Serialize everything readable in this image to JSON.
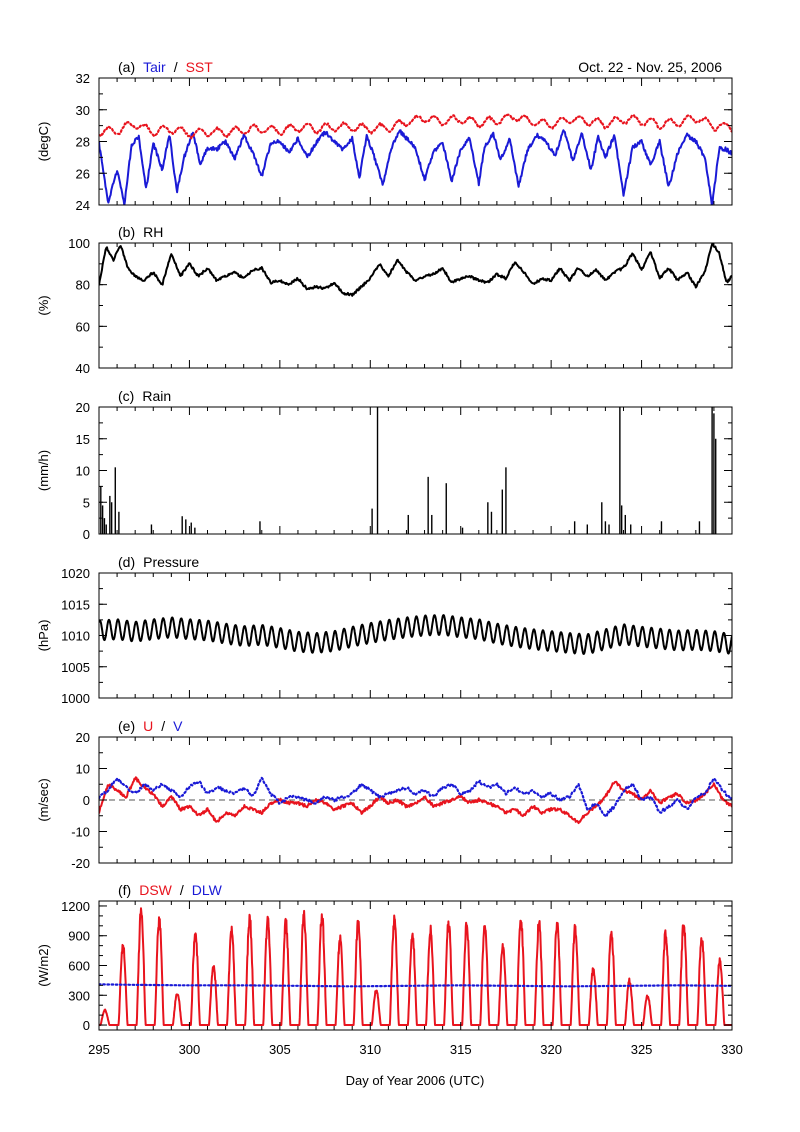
{
  "figure": {
    "date_range": "Oct. 22 - Nov. 25, 2006",
    "xlabel": "Day of Year 2006  (UTC)",
    "xlim": [
      295,
      330
    ],
    "xticks": [
      295,
      300,
      305,
      310,
      315,
      320,
      325,
      330
    ],
    "colors": {
      "red": "#e8141e",
      "blue": "#1a1ad6",
      "black": "#000000"
    }
  },
  "chart_data": [
    {
      "id": "a",
      "type": "line",
      "tag": "(a)",
      "ylabel": "(degC)",
      "ylim": [
        24,
        32
      ],
      "yticks": [
        24,
        26,
        28,
        30,
        32
      ],
      "series": [
        {
          "name": "Tair",
          "color": "#1a1ad6",
          "style": "solid",
          "x": [
            295.0,
            295.5,
            296.0,
            296.4,
            296.8,
            297.2,
            297.6,
            298.0,
            298.5,
            298.9,
            299.3,
            299.7,
            300.2,
            300.6,
            301.0,
            301.5,
            302.0,
            302.5,
            303.0,
            303.5,
            304.0,
            304.5,
            305.0,
            305.5,
            306.0,
            306.5,
            307.0,
            307.5,
            308.0,
            308.5,
            309.0,
            309.4,
            309.8,
            310.2,
            310.7,
            311.2,
            311.6,
            312.0,
            312.5,
            313.0,
            313.5,
            314.0,
            314.5,
            315.0,
            315.5,
            316.0,
            316.3,
            316.8,
            317.2,
            317.7,
            318.2,
            318.7,
            319.2,
            319.7,
            320.2,
            320.7,
            321.2,
            321.7,
            322.2,
            322.6,
            323.0,
            323.5,
            324.0,
            324.5,
            325.0,
            325.5,
            326.0,
            326.5,
            327.0,
            327.5,
            328.0,
            328.5,
            328.9,
            329.3,
            329.7,
            330.0
          ],
          "values": [
            27.9,
            24.1,
            26.2,
            24.0,
            27.8,
            28.3,
            25.0,
            27.9,
            26.2,
            28.5,
            24.8,
            27.0,
            28.6,
            26.5,
            27.6,
            27.5,
            28.0,
            26.9,
            28.4,
            27.3,
            25.8,
            27.9,
            28.0,
            27.3,
            28.2,
            27.0,
            27.9,
            28.6,
            28.0,
            27.5,
            28.2,
            25.7,
            28.4,
            27.1,
            25.3,
            27.7,
            28.7,
            28.2,
            27.6,
            25.6,
            27.4,
            27.9,
            25.5,
            27.5,
            28.2,
            25.3,
            27.6,
            28.5,
            26.8,
            28.2,
            25.2,
            27.5,
            28.4,
            28.0,
            27.1,
            28.7,
            26.8,
            28.5,
            26.2,
            28.3,
            27.0,
            28.4,
            24.6,
            27.6,
            28.0,
            26.5,
            28.0,
            25.1,
            27.3,
            28.4,
            28.0,
            27.0,
            24.0,
            27.6,
            27.5,
            27.2
          ]
        },
        {
          "name": "SST",
          "color": "#e8141e",
          "style": "dotted",
          "x": [
            295.0,
            296.0,
            297.0,
            298.0,
            299.0,
            300.0,
            301.0,
            302.0,
            303.0,
            304.0,
            305.0,
            306.0,
            307.0,
            308.0,
            309.0,
            310.0,
            311.0,
            312.0,
            313.0,
            314.0,
            315.0,
            316.0,
            317.0,
            318.0,
            319.0,
            320.0,
            321.0,
            322.0,
            323.0,
            324.0,
            325.0,
            326.0,
            327.0,
            328.0,
            329.0,
            330.0
          ],
          "values": [
            28.6,
            28.7,
            29.1,
            28.6,
            28.8,
            28.5,
            28.6,
            28.6,
            28.7,
            28.8,
            28.7,
            28.9,
            28.8,
            28.9,
            28.9,
            28.8,
            28.9,
            29.2,
            29.5,
            29.3,
            29.4,
            29.2,
            29.3,
            29.6,
            29.2,
            29.1,
            29.4,
            29.3,
            29.1,
            29.4,
            29.3,
            29.1,
            29.2,
            29.5,
            29.0,
            28.9
          ]
        }
      ]
    },
    {
      "id": "b",
      "type": "line",
      "tag": "(b)",
      "ylabel": "(%)",
      "ylim": [
        40,
        100
      ],
      "yticks": [
        40,
        60,
        80,
        100
      ],
      "series": [
        {
          "name": "RH",
          "color": "#000000",
          "style": "solid",
          "x": [
            295.0,
            295.4,
            295.8,
            296.2,
            296.6,
            297.0,
            297.5,
            298.0,
            298.5,
            299.0,
            299.5,
            300.0,
            300.5,
            301.0,
            301.5,
            302.0,
            302.5,
            303.0,
            303.5,
            304.0,
            304.5,
            305.0,
            305.5,
            306.0,
            306.5,
            307.0,
            307.5,
            308.0,
            308.5,
            309.0,
            309.5,
            310.0,
            310.5,
            311.0,
            311.5,
            312.0,
            312.5,
            313.0,
            313.5,
            314.0,
            314.5,
            315.0,
            315.5,
            316.0,
            316.5,
            317.0,
            317.5,
            318.0,
            318.5,
            319.0,
            319.5,
            320.0,
            320.5,
            321.0,
            321.5,
            322.0,
            322.5,
            323.0,
            323.5,
            324.0,
            324.5,
            325.0,
            325.5,
            326.0,
            326.5,
            327.0,
            327.5,
            328.0,
            328.5,
            328.9,
            329.3,
            329.7,
            330.0
          ],
          "values": [
            80,
            98,
            92,
            99,
            88,
            84,
            82,
            86,
            80,
            95,
            84,
            90,
            84,
            88,
            82,
            84,
            86,
            83,
            87,
            88,
            81,
            82,
            80,
            83,
            78,
            79,
            78,
            81,
            76,
            75,
            79,
            83,
            90,
            84,
            92,
            86,
            82,
            84,
            85,
            88,
            81,
            83,
            84,
            82,
            81,
            85,
            83,
            91,
            86,
            80,
            83,
            82,
            88,
            82,
            88,
            84,
            87,
            82,
            86,
            88,
            95,
            87,
            96,
            83,
            88,
            82,
            86,
            79,
            86,
            100,
            95,
            81,
            84
          ]
        }
      ]
    },
    {
      "id": "c",
      "type": "bar",
      "tag": "(c)",
      "ylabel": "(mm/h)",
      "ylim": [
        0,
        20
      ],
      "yticks": [
        0,
        5,
        10,
        15,
        20
      ],
      "series": [
        {
          "name": "Rain",
          "color": "#000000",
          "x": [
            295.1,
            295.2,
            295.3,
            295.4,
            295.6,
            295.7,
            295.9,
            296.1,
            297.9,
            299.6,
            299.8,
            300.1,
            300.3,
            303.9,
            310.1,
            310.4,
            312.1,
            313.2,
            313.4,
            314.2,
            315.1,
            316.5,
            316.7,
            317.3,
            317.5,
            321.3,
            322.0,
            322.8,
            323.0,
            323.2,
            323.8,
            323.9,
            324.1,
            324.4,
            326.1,
            328.2,
            328.9,
            329.0,
            329.1
          ],
          "values": [
            7.5,
            4.5,
            2.5,
            1.5,
            6.0,
            5.0,
            10.5,
            3.5,
            1.5,
            2.8,
            2.3,
            1.8,
            1.0,
            2.0,
            4.0,
            20.0,
            3.0,
            9.0,
            3.0,
            8.0,
            1.0,
            5.0,
            3.5,
            7.0,
            10.5,
            2.0,
            1.5,
            5.0,
            2.0,
            1.5,
            20.0,
            4.5,
            3.0,
            1.5,
            2.0,
            2.0,
            20.0,
            19.0,
            15.0
          ]
        }
      ]
    },
    {
      "id": "d",
      "type": "line",
      "tag": "(d)",
      "ylabel": "(hPa)",
      "ylim": [
        1000,
        1020
      ],
      "yticks": [
        1000,
        1005,
        1010,
        1015,
        1020
      ],
      "series": [
        {
          "name": "Pressure",
          "color": "#000000",
          "style": "solid",
          "x": [
            295.0,
            296.0,
            297.0,
            298.0,
            299.0,
            300.0,
            301.0,
            302.0,
            303.0,
            304.0,
            305.0,
            306.0,
            307.0,
            308.0,
            309.0,
            310.0,
            311.0,
            312.0,
            313.0,
            314.0,
            315.0,
            316.0,
            317.0,
            318.0,
            319.0,
            320.0,
            321.0,
            322.0,
            323.0,
            324.0,
            325.0,
            326.0,
            327.0,
            328.0,
            329.0,
            330.0
          ],
          "values": [
            1010.8,
            1011.0,
            1010.6,
            1011.0,
            1011.3,
            1011.0,
            1010.8,
            1010.3,
            1009.9,
            1010.1,
            1009.6,
            1009.0,
            1008.8,
            1009.1,
            1009.8,
            1010.4,
            1010.9,
            1011.3,
            1011.6,
            1011.7,
            1011.3,
            1011.0,
            1010.3,
            1009.8,
            1009.4,
            1009.1,
            1008.8,
            1008.6,
            1009.4,
            1010.2,
            1009.8,
            1009.5,
            1009.2,
            1009.3,
            1009.1,
            1008.6
          ],
          "diurnal_amplitude": 1.6
        }
      ]
    },
    {
      "id": "e",
      "type": "line",
      "tag": "(e)",
      "ylabel": "(m/sec)",
      "ylim": [
        -20,
        20
      ],
      "yticks": [
        -20,
        -10,
        0,
        10,
        20
      ],
      "zero_line": true,
      "series": [
        {
          "name": "U",
          "color": "#e8141e",
          "style": "solid",
          "x": [
            295.0,
            295.5,
            296.0,
            296.5,
            297.0,
            297.5,
            298.0,
            298.5,
            299.0,
            299.5,
            300.0,
            300.5,
            301.0,
            301.5,
            302.0,
            302.5,
            303.0,
            303.5,
            304.0,
            304.5,
            305.0,
            305.5,
            306.0,
            306.5,
            307.0,
            307.5,
            308.0,
            308.5,
            309.0,
            309.5,
            310.0,
            310.5,
            311.0,
            311.5,
            312.0,
            312.5,
            313.0,
            313.5,
            314.0,
            314.5,
            315.0,
            315.5,
            316.0,
            316.5,
            317.0,
            317.5,
            318.0,
            318.5,
            319.0,
            319.5,
            320.0,
            320.5,
            321.0,
            321.5,
            322.0,
            322.5,
            323.0,
            323.5,
            324.0,
            324.5,
            325.0,
            325.5,
            326.0,
            326.5,
            327.0,
            327.5,
            328.0,
            328.5,
            329.0,
            329.5,
            330.0
          ],
          "values": [
            -4,
            5,
            3,
            1,
            7,
            4,
            2,
            -2,
            1,
            -3,
            -2,
            -5,
            -3,
            -7,
            -4,
            -5,
            -2,
            -3,
            -4,
            -1,
            0,
            -1,
            -1,
            -2,
            0,
            -1,
            -3,
            -2,
            -1,
            -4,
            -2,
            1,
            -1,
            0,
            -2,
            -1,
            1,
            -2,
            -1,
            0,
            1,
            -1,
            0,
            -1,
            -2,
            -4,
            -3,
            -5,
            -2,
            -4,
            -3,
            -3,
            -5,
            -7,
            -4,
            -2,
            1,
            6,
            3,
            2,
            0,
            3,
            -1,
            1,
            2,
            -1,
            0,
            2,
            5,
            0,
            -2
          ]
        },
        {
          "name": "V",
          "color": "#1a1ad6",
          "style": "dotted",
          "x": [
            295.0,
            295.5,
            296.0,
            296.5,
            297.0,
            297.5,
            298.0,
            298.5,
            299.0,
            299.5,
            300.0,
            300.5,
            301.0,
            301.5,
            302.0,
            302.5,
            303.0,
            303.5,
            304.0,
            304.5,
            305.0,
            305.5,
            306.0,
            306.5,
            307.0,
            307.5,
            308.0,
            308.5,
            309.0,
            309.5,
            310.0,
            310.5,
            311.0,
            311.5,
            312.0,
            312.5,
            313.0,
            313.5,
            314.0,
            314.5,
            315.0,
            315.5,
            316.0,
            316.5,
            317.0,
            317.5,
            318.0,
            318.5,
            319.0,
            319.5,
            320.0,
            320.5,
            321.0,
            321.5,
            322.0,
            322.5,
            323.0,
            323.5,
            324.0,
            324.5,
            325.0,
            325.5,
            326.0,
            326.5,
            327.0,
            327.5,
            328.0,
            328.5,
            329.0,
            329.5,
            330.0
          ],
          "values": [
            1,
            3,
            7,
            4,
            2,
            5,
            3,
            5,
            3,
            1,
            4,
            6,
            2,
            4,
            3,
            2,
            4,
            1,
            7,
            2,
            -1,
            1,
            1,
            0,
            -1,
            1,
            0,
            1,
            2,
            5,
            3,
            1,
            2,
            3,
            4,
            2,
            3,
            1,
            4,
            5,
            2,
            3,
            6,
            4,
            5,
            2,
            4,
            2,
            3,
            1,
            2,
            0,
            1,
            5,
            -3,
            -1,
            -5,
            -2,
            3,
            5,
            0,
            1,
            -4,
            -2,
            0,
            -3,
            1,
            2,
            7,
            3,
            0
          ]
        }
      ]
    },
    {
      "id": "f",
      "type": "line",
      "tag": "(f)",
      "ylabel": "(W/m2)",
      "ylim": [
        -50,
        1250
      ],
      "yticks": [
        0,
        300,
        600,
        900,
        1200
      ],
      "series": [
        {
          "name": "DSW",
          "color": "#e8141e",
          "style": "solid",
          "days": [
            295,
            296,
            297,
            298,
            299,
            300,
            301,
            302,
            303,
            304,
            305,
            306,
            307,
            308,
            309,
            310,
            311,
            312,
            313,
            314,
            315,
            316,
            317,
            318,
            319,
            320,
            321,
            322,
            323,
            324,
            325,
            326,
            327,
            328,
            329
          ],
          "daily_peak": [
            150,
            800,
            1130,
            1050,
            320,
            930,
            600,
            950,
            1060,
            1050,
            1030,
            1110,
            1090,
            870,
            1020,
            350,
            1050,
            900,
            950,
            1020,
            1000,
            990,
            780,
            1050,
            1020,
            1020,
            980,
            570,
            930,
            450,
            300,
            920,
            1020,
            880,
            650
          ]
        },
        {
          "name": "DLW",
          "color": "#1a1ad6",
          "style": "dotted",
          "x": [
            295,
            297,
            300,
            303,
            306,
            309,
            312,
            315,
            318,
            321,
            324,
            327,
            330
          ],
          "values": [
            410,
            405,
            400,
            400,
            395,
            390,
            395,
            400,
            395,
            390,
            395,
            400,
            395
          ]
        }
      ]
    }
  ]
}
